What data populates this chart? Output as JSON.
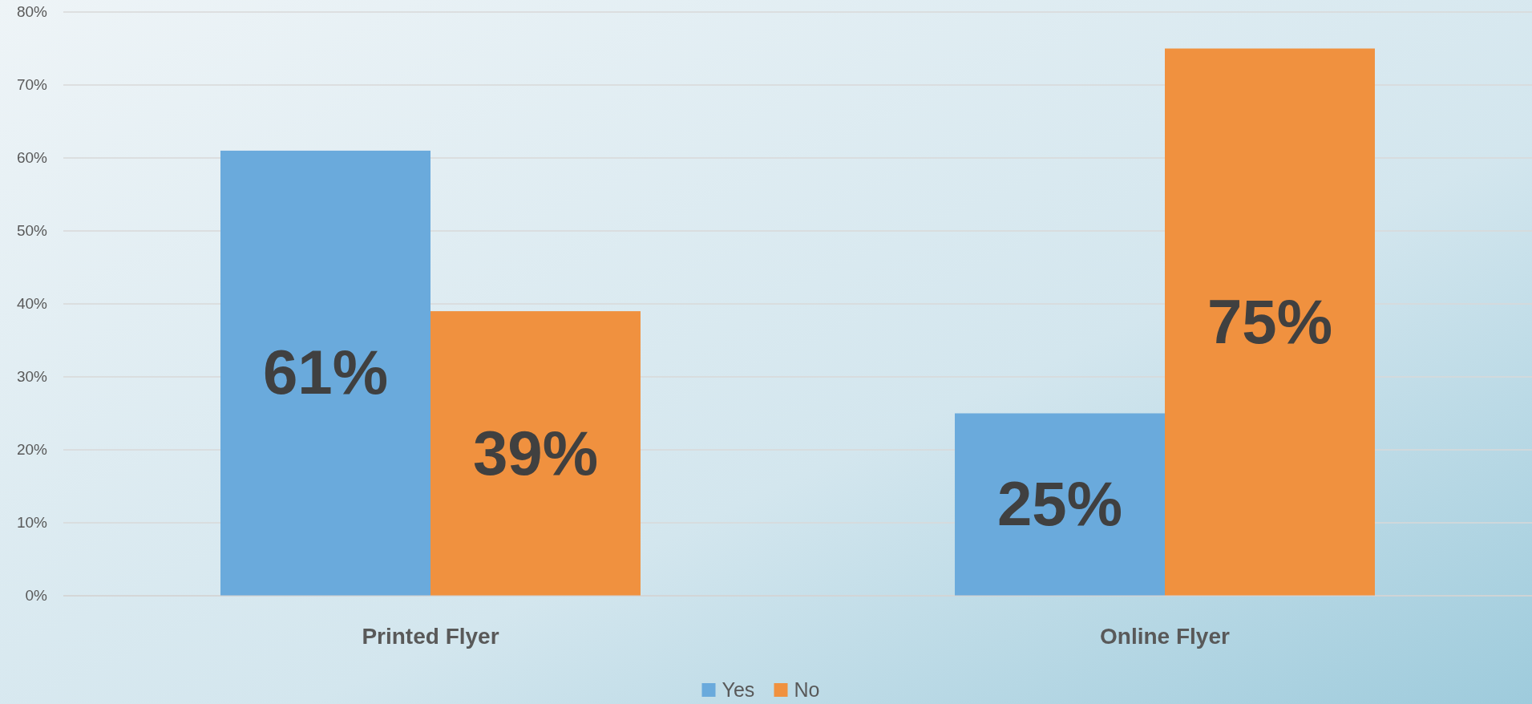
{
  "chart_data": {
    "type": "bar",
    "categories": [
      "Printed Flyer",
      "Online Flyer"
    ],
    "series": [
      {
        "name": "Yes",
        "color": "#6aaadc",
        "values": [
          61,
          25
        ],
        "value_labels": [
          "61%",
          "25%"
        ]
      },
      {
        "name": "No",
        "color": "#f0913f",
        "values": [
          39,
          75
        ],
        "value_labels": [
          "39%",
          "75%"
        ]
      }
    ],
    "ylim": [
      0,
      80
    ],
    "yticks": [
      {
        "value": 0,
        "label": "0%"
      },
      {
        "value": 10,
        "label": "10%"
      },
      {
        "value": 20,
        "label": "20%"
      },
      {
        "value": 30,
        "label": "30%"
      },
      {
        "value": 40,
        "label": "40%"
      },
      {
        "value": 50,
        "label": "50%"
      },
      {
        "value": 60,
        "label": "60%"
      },
      {
        "value": 70,
        "label": "70%"
      },
      {
        "value": 80,
        "label": "80%"
      }
    ],
    "grid": "y",
    "legend": "bottom"
  }
}
